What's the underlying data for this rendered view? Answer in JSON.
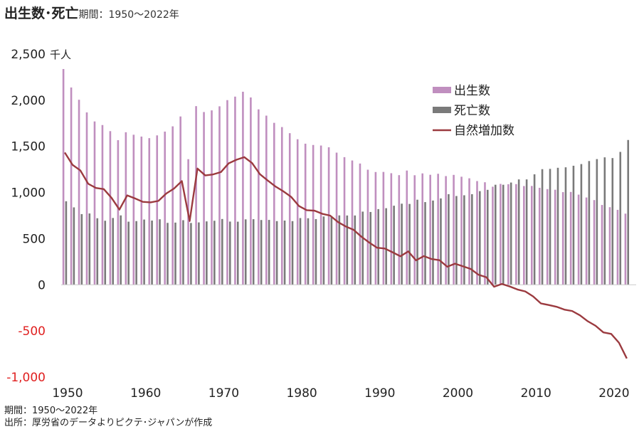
{
  "chart_data": {
    "type": "bar",
    "title": "出生数･死亡",
    "subtitle": "期間：1950～2022年",
    "unit": "千人",
    "x": [
      1950,
      1951,
      1952,
      1953,
      1954,
      1955,
      1956,
      1957,
      1958,
      1959,
      1960,
      1961,
      1962,
      1963,
      1964,
      1965,
      1966,
      1967,
      1968,
      1969,
      1970,
      1971,
      1972,
      1973,
      1974,
      1975,
      1976,
      1977,
      1978,
      1979,
      1980,
      1981,
      1982,
      1983,
      1984,
      1985,
      1986,
      1987,
      1988,
      1989,
      1990,
      1991,
      1992,
      1993,
      1994,
      1995,
      1996,
      1997,
      1998,
      1999,
      2000,
      2001,
      2002,
      2003,
      2004,
      2005,
      2006,
      2007,
      2008,
      2009,
      2010,
      2011,
      2012,
      2013,
      2014,
      2015,
      2016,
      2017,
      2018,
      2019,
      2020,
      2021,
      2022
    ],
    "x_ticks": [
      "1950",
      "1960",
      "1970",
      "1980",
      "1990",
      "2000",
      "2010",
      "2020"
    ],
    "y_ticks": [
      "2,500",
      "2,000",
      "1,500",
      "1,000",
      "500",
      "0",
      "-500",
      "-1,000"
    ],
    "ylim": [
      -1000,
      2500
    ],
    "negative_tick_color": "#e02020",
    "legend_position": "top-right",
    "series": [
      {
        "name": "出生数",
        "type": "bar",
        "color": "#c08fbf",
        "values": [
          2338,
          2138,
          2005,
          1868,
          1770,
          1731,
          1665,
          1567,
          1653,
          1626,
          1606,
          1589,
          1619,
          1660,
          1717,
          1824,
          1361,
          1936,
          1872,
          1890,
          1934,
          2001,
          2039,
          2092,
          2030,
          1901,
          1833,
          1755,
          1709,
          1643,
          1577,
          1529,
          1515,
          1509,
          1490,
          1432,
          1383,
          1347,
          1314,
          1247,
          1222,
          1223,
          1209,
          1188,
          1238,
          1187,
          1207,
          1192,
          1203,
          1178,
          1191,
          1171,
          1154,
          1124,
          1111,
          1063,
          1093,
          1090,
          1091,
          1070,
          1071,
          1051,
          1037,
          1030,
          1004,
          1006,
          977,
          946,
          918,
          865,
          841,
          812,
          771
        ]
      },
      {
        "name": "死亡数",
        "type": "bar",
        "color": "#7a7a7a",
        "values": [
          905,
          839,
          766,
          773,
          721,
          694,
          724,
          752,
          684,
          690,
          707,
          696,
          710,
          671,
          674,
          700,
          670,
          676,
          687,
          694,
          713,
          685,
          684,
          709,
          711,
          702,
          703,
          690,
          696,
          690,
          723,
          721,
          712,
          740,
          740,
          752,
          751,
          751,
          793,
          789,
          820,
          830,
          857,
          879,
          876,
          922,
          896,
          913,
          936,
          982,
          962,
          970,
          982,
          1015,
          1029,
          1084,
          1084,
          1108,
          1142,
          1142,
          1197,
          1253,
          1256,
          1268,
          1273,
          1290,
          1308,
          1341,
          1362,
          1381,
          1373,
          1440,
          1569
        ]
      },
      {
        "name": "自然増加数",
        "type": "line",
        "color": "#9b3a3f",
        "values": [
          1433,
          1299,
          1239,
          1095,
          1049,
          1037,
          941,
          815,
          969,
          936,
          899,
          893,
          909,
          989,
          1043,
          1124,
          691,
          1260,
          1185,
          1196,
          1221,
          1316,
          1355,
          1383,
          1319,
          1199,
          1130,
          1065,
          1013,
          953,
          854,
          808,
          803,
          769,
          750,
          680,
          632,
          596,
          521,
          458,
          402,
          393,
          352,
          309,
          362,
          265,
          311,
          279,
          267,
          196,
          229,
          201,
          172,
          109,
          82,
          -21,
          9,
          -18,
          -51,
          -72,
          -126,
          -202,
          -219,
          -238,
          -269,
          -284,
          -331,
          -395,
          -444,
          -516,
          -532,
          -628,
          -798
        ]
      }
    ]
  },
  "footer": {
    "period": "期間：1950～2022年",
    "source": "出所：厚労省のデータよりピクテ･ジャパンが作成"
  }
}
